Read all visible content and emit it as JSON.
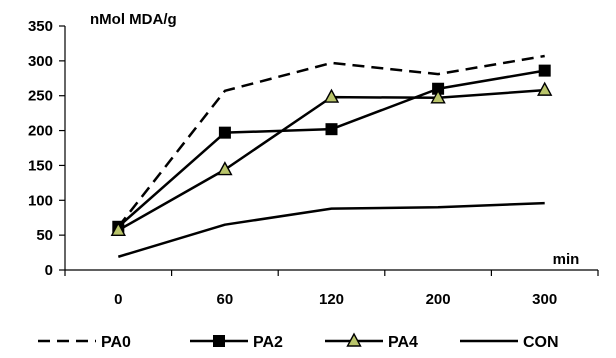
{
  "chart_data": {
    "type": "line",
    "title": "",
    "xlabel": "min",
    "ylabel": "nMol MDA/g",
    "categories": [
      "0",
      "60",
      "120",
      "200",
      "300"
    ],
    "ylim": [
      0,
      350
    ],
    "yticks": [
      "0",
      "50",
      "100",
      "150",
      "200",
      "250",
      "300",
      "350"
    ],
    "grid": false,
    "legend": "bottom",
    "series": [
      {
        "name": "PA0",
        "values": [
          62,
          257,
          297,
          281,
          307
        ],
        "style": "dashed",
        "marker": "none",
        "color": "#000000"
      },
      {
        "name": "PA2",
        "values": [
          62,
          197,
          202,
          260,
          286
        ],
        "style": "solid",
        "marker": "square",
        "color": "#000000"
      },
      {
        "name": "PA4",
        "values": [
          57,
          144,
          248,
          247,
          258
        ],
        "style": "solid",
        "marker": "triangle",
        "color": "#000000",
        "marker_fill": "#b9c46a"
      },
      {
        "name": "CON",
        "values": [
          19,
          65,
          88,
          90,
          96
        ],
        "style": "solid",
        "marker": "none",
        "color": "#000000"
      }
    ]
  }
}
